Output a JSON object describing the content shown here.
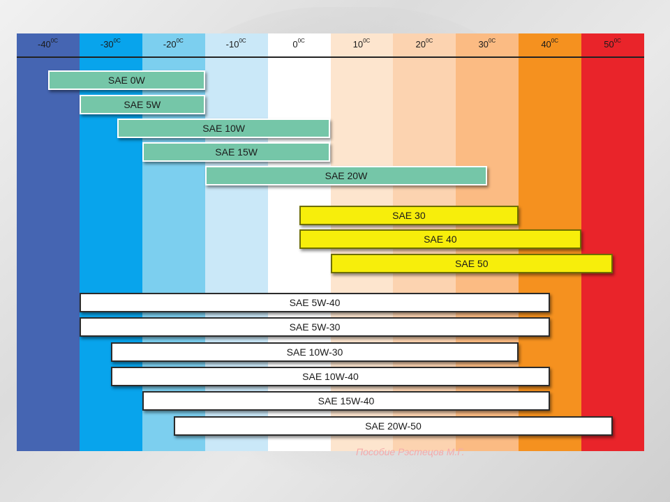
{
  "chart_data": {
    "type": "bar",
    "orientation": "horizontal",
    "x_axis_position": "top",
    "x": [
      -40,
      -30,
      -20,
      -10,
      0,
      10,
      20,
      30,
      40,
      50
    ],
    "x_tick_labels": [
      "-40",
      "-30",
      "-20",
      "-10",
      "0",
      "10",
      "20",
      "30",
      "40",
      "50"
    ],
    "x_unit": "0C",
    "band_colors": [
      "#4565b2",
      "#08a4ec",
      "#7ccfef",
      "#cae8f8",
      "#ffffff",
      "#fde5ce",
      "#fcd3b0",
      "#fbbb83",
      "#f5911f",
      "#e9242a"
    ],
    "series": [
      {
        "name": "SAE 0W",
        "start": -40,
        "end": -15,
        "color": "#75c6a8"
      },
      {
        "name": "SAE 5W",
        "start": -35,
        "end": -15,
        "color": "#75c6a8"
      },
      {
        "name": "SAE 10W",
        "start": -29,
        "end": 5,
        "color": "#75c6a8"
      },
      {
        "name": "SAE 15W",
        "start": -25,
        "end": 5,
        "color": "#75c6a8"
      },
      {
        "name": "SAE 20W",
        "start": -15,
        "end": 30,
        "color": "#75c6a8"
      },
      {
        "name": "SAE 30",
        "start": 0,
        "end": 35,
        "color": "#f7ee0b"
      },
      {
        "name": "SAE 40",
        "start": 0,
        "end": 45,
        "color": "#f7ee0b"
      },
      {
        "name": "SAE 50",
        "start": 5,
        "end": 50,
        "color": "#f7ee0b"
      },
      {
        "name": "SAE 5W-40",
        "start": -35,
        "end": 40,
        "color": "#ffffff"
      },
      {
        "name": "SAE 5W-30",
        "start": -35,
        "end": 40,
        "color": "#ffffff"
      },
      {
        "name": "SAE 10W-30",
        "start": -30,
        "end": 35,
        "color": "#ffffff"
      },
      {
        "name": "SAE 10W-40",
        "start": -30,
        "end": 40,
        "color": "#ffffff"
      },
      {
        "name": "SAE 15W-40",
        "start": -25,
        "end": 40,
        "color": "#ffffff"
      },
      {
        "name": "SAE 20W-50",
        "start": -20,
        "end": 50,
        "color": "#ffffff"
      }
    ]
  },
  "watermark_text": "Пособие Рэстецов М.Г."
}
